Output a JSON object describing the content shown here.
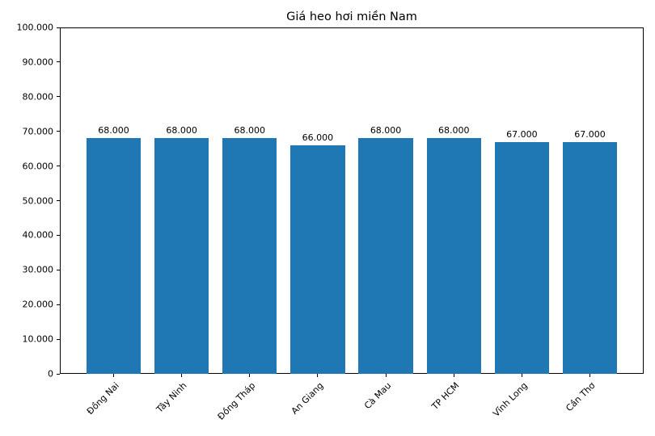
{
  "chart_data": {
    "type": "bar",
    "title": "Giá heo hơi miền Nam",
    "categories": [
      "Đồng Nai",
      "Tây Ninh",
      "Đồng Tháp",
      "An Giang",
      "Cà Mau",
      "TP HCM",
      "Vĩnh Long",
      "Cần Thơ"
    ],
    "values": [
      68000,
      68000,
      68000,
      66000,
      68000,
      68000,
      67000,
      67000
    ],
    "value_labels": [
      "68.000",
      "68.000",
      "68.000",
      "66.000",
      "68.000",
      "68.000",
      "67.000",
      "67.000"
    ],
    "xlabel": "",
    "ylabel": "",
    "ylim": [
      0,
      100000
    ],
    "ytick_step": 10000,
    "ytick_labels": [
      "0",
      "10.000",
      "20.000",
      "30.000",
      "40.000",
      "50.000",
      "60.000",
      "70.000",
      "80.000",
      "90.000",
      "100.000"
    ],
    "bar_color": "#1f77b4",
    "text_color": "#000000",
    "spine_color": "#000000",
    "grid": false,
    "legend": null,
    "xtick_rotation_deg": 45
  }
}
